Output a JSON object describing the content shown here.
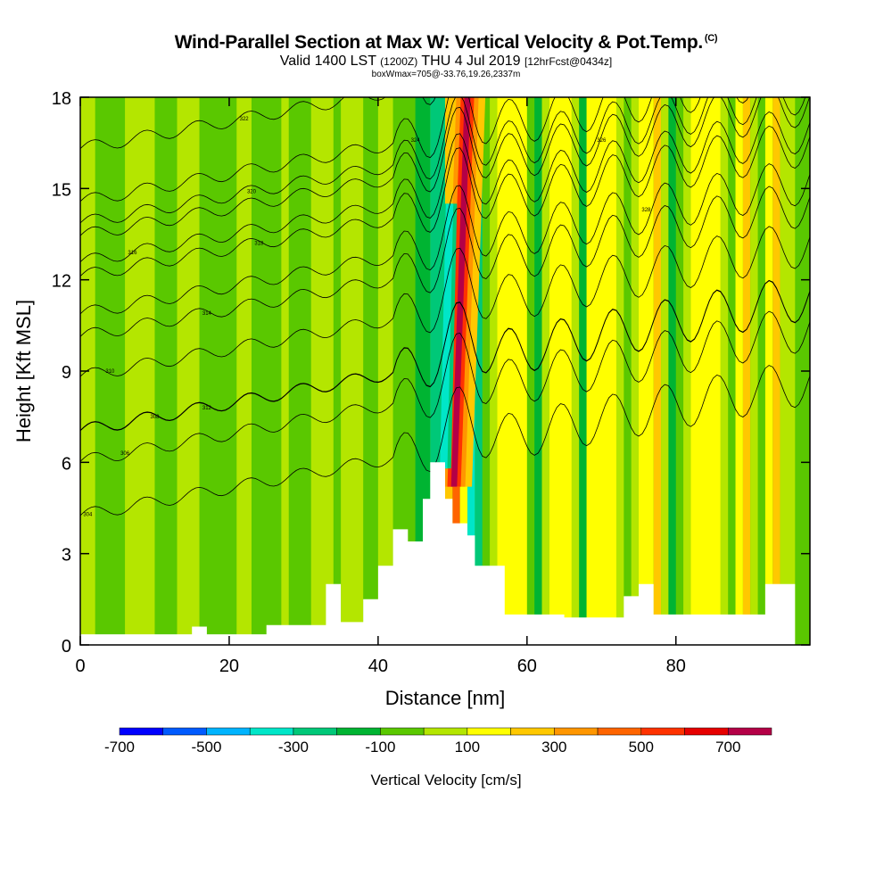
{
  "header": {
    "title": "Wind-Parallel Section at Max W: Vertical Velocity & Pot.Temp.",
    "copyright": "(C)",
    "valid_prefix": "Valid 1400 LST",
    "valid_utc": "(1200Z)",
    "valid_date": "THU 4 Jul 2019",
    "forecast": "[12hrFcst@0434z]",
    "box_info": "boxWmax=705@-33.76,19.26,2337m"
  },
  "chart_data": {
    "type": "heatmap",
    "xlabel": "Distance [nm]",
    "ylabel": "Height [Kft MSL]",
    "xlim": [
      0,
      98
    ],
    "ylim": [
      0,
      18
    ],
    "x_ticks": [
      0,
      20,
      40,
      60,
      80
    ],
    "y_ticks": [
      0,
      3,
      6,
      9,
      12,
      15,
      18
    ],
    "x_tick_labels": [
      "0",
      "20",
      "40",
      "60",
      "80"
    ],
    "y_tick_labels": [
      "0",
      "3",
      "6",
      "9",
      "12",
      "15",
      "18"
    ],
    "colorbar": {
      "title": "Vertical Velocity [cm/s]",
      "colors": [
        "#0000ff",
        "#005aff",
        "#00b4ff",
        "#00e6c8",
        "#00c878",
        "#00b432",
        "#5ac800",
        "#b4e600",
        "#ffff00",
        "#ffc800",
        "#ff9600",
        "#ff6400",
        "#ff3200",
        "#e60000",
        "#b40046"
      ],
      "tick_labels": [
        "-700",
        "-500",
        "-300",
        "-100",
        "100",
        "300",
        "500",
        "700"
      ]
    },
    "background_color": "#5ac800",
    "columns": [
      {
        "x0": 0,
        "x1": 2,
        "color": "#b4e600"
      },
      {
        "x0": 6,
        "x1": 10,
        "color": "#b4e600"
      },
      {
        "x0": 13,
        "x1": 16,
        "color": "#b4e600"
      },
      {
        "x0": 21,
        "x1": 23,
        "color": "#b4e600"
      },
      {
        "x0": 27,
        "x1": 28,
        "color": "#b4e600"
      },
      {
        "x0": 31,
        "x1": 34,
        "color": "#b4e600"
      },
      {
        "x0": 35,
        "x1": 38,
        "color": "#b4e600"
      },
      {
        "x0": 40,
        "x1": 42,
        "color": "#b4e600"
      },
      {
        "x0": 45,
        "x1": 47,
        "color": "#00b432"
      },
      {
        "x0": 47,
        "x1": 49,
        "color": "#00c878"
      },
      {
        "x0": 49,
        "x1": 50,
        "color": "#ffc800"
      },
      {
        "x0": 50,
        "x1": 51,
        "color": "#ff6400"
      },
      {
        "x0": 51,
        "x1": 52,
        "color": "#ffff00"
      },
      {
        "x0": 52,
        "x1": 53,
        "color": "#00e6c8"
      },
      {
        "x0": 53,
        "x1": 54,
        "color": "#00c878"
      },
      {
        "x0": 55,
        "x1": 56,
        "color": "#b4e600"
      },
      {
        "x0": 56,
        "x1": 60,
        "color": "#ffff00"
      },
      {
        "x0": 61,
        "x1": 62,
        "color": "#00b432"
      },
      {
        "x0": 62,
        "x1": 63,
        "color": "#b4e600"
      },
      {
        "x0": 63,
        "x1": 66,
        "color": "#ffff00"
      },
      {
        "x0": 66,
        "x1": 67,
        "color": "#b4e600"
      },
      {
        "x0": 67,
        "x1": 68,
        "color": "#00b432"
      },
      {
        "x0": 68,
        "x1": 72,
        "color": "#ffff00"
      },
      {
        "x0": 72,
        "x1": 73,
        "color": "#b4e600"
      },
      {
        "x0": 74,
        "x1": 75,
        "color": "#b4e600"
      },
      {
        "x0": 75,
        "x1": 77,
        "color": "#ffff00"
      },
      {
        "x0": 77,
        "x1": 78,
        "color": "#ffc800"
      },
      {
        "x0": 78,
        "x1": 79,
        "color": "#b4e600"
      },
      {
        "x0": 79,
        "x1": 80,
        "color": "#00b432"
      },
      {
        "x0": 81,
        "x1": 82,
        "color": "#b4e600"
      },
      {
        "x0": 82,
        "x1": 86,
        "color": "#ffff00"
      },
      {
        "x0": 86,
        "x1": 87,
        "color": "#b4e600"
      },
      {
        "x0": 88,
        "x1": 89,
        "color": "#ffff00"
      },
      {
        "x0": 89,
        "x1": 90,
        "color": "#ffc800"
      },
      {
        "x0": 90,
        "x1": 91,
        "color": "#b4e600"
      },
      {
        "x0": 92,
        "x1": 93,
        "color": "#ffff00"
      },
      {
        "x0": 93,
        "x1": 94,
        "color": "#ffc800"
      },
      {
        "x0": 94,
        "x1": 96,
        "color": "#b4e600"
      }
    ],
    "updraft_core": {
      "x_bottom": 50.2,
      "y_bottom": 5.2,
      "x_top": 52.0,
      "y_top": 18.0,
      "bands": [
        {
          "half_width": 2.4,
          "color": "#ffc800"
        },
        {
          "half_width": 1.5,
          "color": "#ff9600"
        },
        {
          "half_width": 0.9,
          "color": "#ff3200"
        },
        {
          "half_width": 0.4,
          "color": "#b40046"
        }
      ]
    },
    "downdraft_core": {
      "x_bottom": 48.8,
      "y_bottom": 5.8,
      "x_top": 49.6,
      "y_top": 14.5,
      "bands": [
        {
          "half_width": 1.0,
          "color": "#00c878"
        },
        {
          "half_width": 0.5,
          "color": "#00e6c8"
        }
      ]
    },
    "terrain": [
      [
        0,
        0.35
      ],
      [
        15,
        0.35
      ],
      [
        15,
        0.6
      ],
      [
        17,
        0.6
      ],
      [
        17,
        0.35
      ],
      [
        25,
        0.35
      ],
      [
        25,
        0.65
      ],
      [
        33,
        0.65
      ],
      [
        33,
        2.0
      ],
      [
        35,
        2.0
      ],
      [
        35,
        0.75
      ],
      [
        38,
        0.75
      ],
      [
        38,
        1.5
      ],
      [
        40,
        1.5
      ],
      [
        40,
        2.6
      ],
      [
        42,
        2.6
      ],
      [
        42,
        3.8
      ],
      [
        44,
        3.8
      ],
      [
        44,
        3.4
      ],
      [
        46,
        3.4
      ],
      [
        46,
        4.8
      ],
      [
        47,
        4.8
      ],
      [
        47,
        6.0
      ],
      [
        49,
        6.0
      ],
      [
        49,
        4.8
      ],
      [
        50,
        4.8
      ],
      [
        50,
        4.0
      ],
      [
        52,
        4.0
      ],
      [
        52,
        3.6
      ],
      [
        53,
        3.6
      ],
      [
        53,
        2.6
      ],
      [
        57,
        2.6
      ],
      [
        57,
        1.0
      ],
      [
        65,
        1.0
      ],
      [
        65,
        0.9
      ],
      [
        73,
        0.9
      ],
      [
        73,
        1.6
      ],
      [
        75,
        1.6
      ],
      [
        75,
        2.0
      ],
      [
        77,
        2.0
      ],
      [
        77,
        1.0
      ],
      [
        92,
        1.0
      ],
      [
        92,
        2.0
      ],
      [
        96,
        2.0
      ],
      [
        96,
        0
      ],
      [
        0,
        0
      ]
    ],
    "theta_contours": [
      {
        "label": "304",
        "x": 1,
        "y": 4.3
      },
      {
        "label": "306",
        "x": 6,
        "y": 6.3
      },
      {
        "label": "308",
        "x": 10,
        "y": 7.5
      },
      {
        "label": "310",
        "x": 4,
        "y": 9.0
      },
      {
        "label": "312",
        "x": 17,
        "y": 7.8
      },
      {
        "label": "314",
        "x": 17,
        "y": 10.9
      },
      {
        "label": "316",
        "x": 7,
        "y": 12.9
      },
      {
        "label": "318",
        "x": 24,
        "y": 13.2
      },
      {
        "label": "320",
        "x": 23,
        "y": 14.9
      },
      {
        "label": "322",
        "x": 22,
        "y": 17.3
      },
      {
        "label": "324",
        "x": 45,
        "y": 16.6
      },
      {
        "label": "326",
        "x": 70,
        "y": 16.6
      },
      {
        "label": "328",
        "x": 76,
        "y": 14.3
      }
    ]
  }
}
